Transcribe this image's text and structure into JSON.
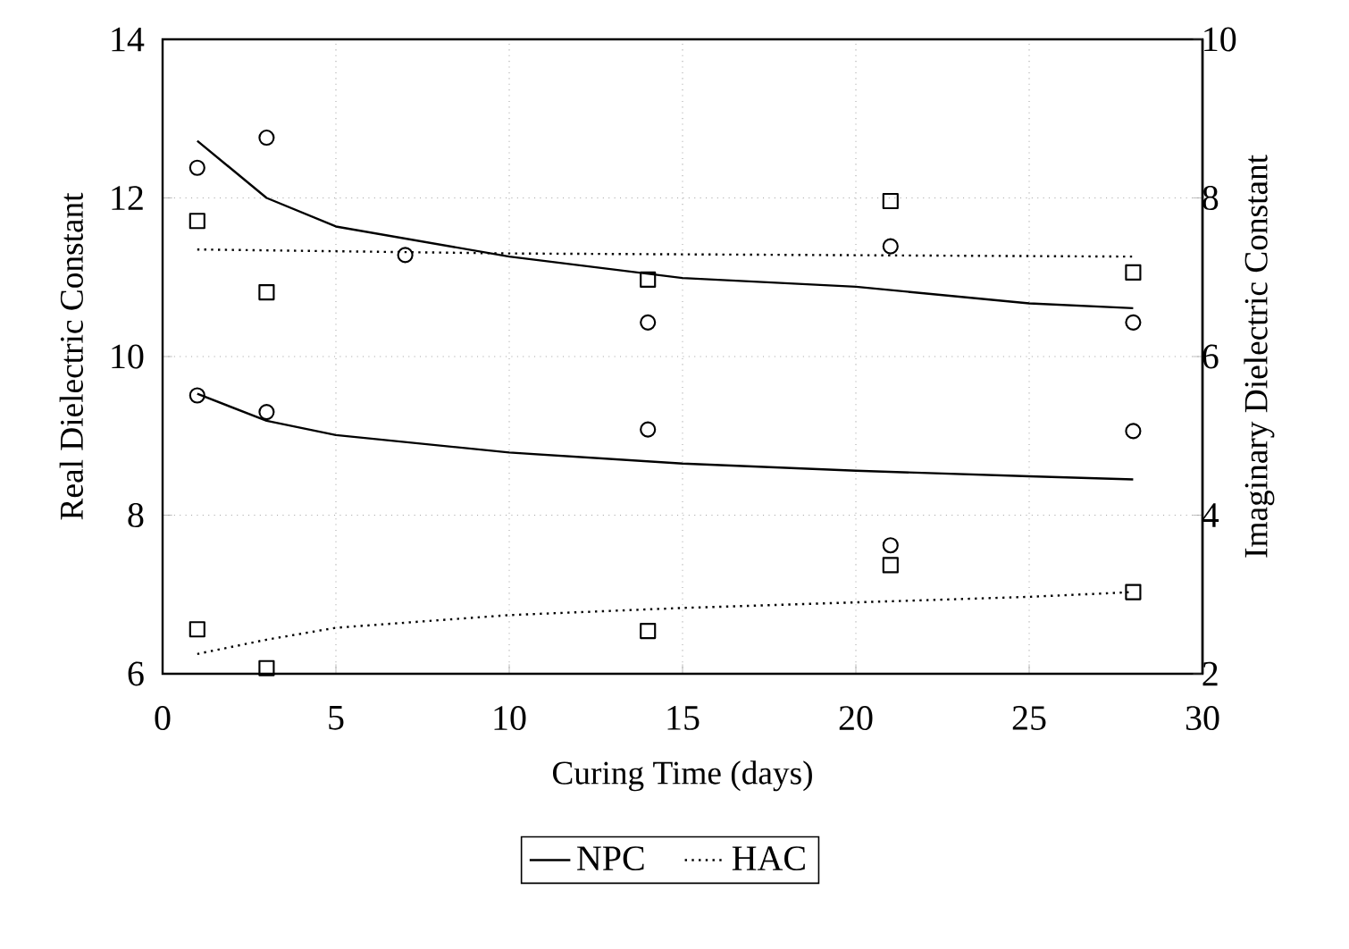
{
  "chart_data": {
    "type": "line",
    "xlabel": "Curing Time (days)",
    "ylabel": "Real Dielectric Constant",
    "y2label": "Imaginary Dielectric Constant",
    "xlim": [
      0,
      30
    ],
    "xticks": [
      0,
      5,
      10,
      15,
      20,
      25,
      30
    ],
    "ylim": [
      6,
      14
    ],
    "yticks": [
      6,
      8,
      10,
      12,
      14
    ],
    "y2lim": [
      2,
      10
    ],
    "y2ticks": [
      2,
      4,
      6,
      8,
      10
    ],
    "grid": true,
    "legend": "bottom",
    "series": [
      {
        "name": "NPC",
        "color": "#000000",
        "line_style": "solid",
        "marker": "none",
        "x": [
          1,
          3,
          5,
          10,
          15,
          20,
          25,
          28
        ],
        "values": [
          12.72,
          12.0,
          11.64,
          11.26,
          10.99,
          10.88,
          10.67,
          10.61
        ]
      },
      {
        "name": "HAC",
        "color": "#000000",
        "line_style": "dotted",
        "marker": "none",
        "x": [
          1,
          10,
          28
        ],
        "values": [
          11.35,
          11.3,
          11.26
        ]
      },
      {
        "type": "scatter",
        "color": "#000000",
        "marker": "circle",
        "x": [
          1,
          3,
          7,
          14,
          21,
          28
        ],
        "values": [
          12.38,
          12.76,
          11.28,
          10.43,
          11.39,
          10.43
        ]
      },
      {
        "type": "scatter",
        "color": "#000000",
        "marker": "square",
        "x": [
          1,
          3,
          14,
          21,
          28
        ],
        "values": [
          11.71,
          10.81,
          10.97,
          11.96,
          11.06
        ]
      },
      {
        "axis": "y2",
        "color": "#000000",
        "line_style": "solid",
        "marker": "none",
        "x": [
          1,
          3,
          5,
          10,
          15,
          20,
          25,
          28
        ],
        "values": [
          5.53,
          5.19,
          5.01,
          4.79,
          4.65,
          4.56,
          4.49,
          4.45
        ]
      },
      {
        "axis": "y2",
        "color": "#000000",
        "line_style": "dotted",
        "marker": "none",
        "x": [
          1,
          3,
          5,
          10,
          15,
          20,
          25,
          28
        ],
        "values": [
          2.25,
          2.43,
          2.58,
          2.74,
          2.83,
          2.9,
          2.97,
          3.03
        ]
      },
      {
        "type": "scatter",
        "axis": "y2",
        "color": "#000000",
        "marker": "circle",
        "x": [
          1,
          3,
          14,
          21,
          28
        ],
        "values": [
          5.51,
          5.3,
          5.08,
          3.62,
          5.06
        ]
      },
      {
        "type": "scatter",
        "axis": "y2",
        "color": "#000000",
        "marker": "square",
        "x": [
          1,
          3,
          14,
          21,
          28
        ],
        "values": [
          2.56,
          2.07,
          2.54,
          3.37,
          3.03
        ]
      }
    ]
  }
}
